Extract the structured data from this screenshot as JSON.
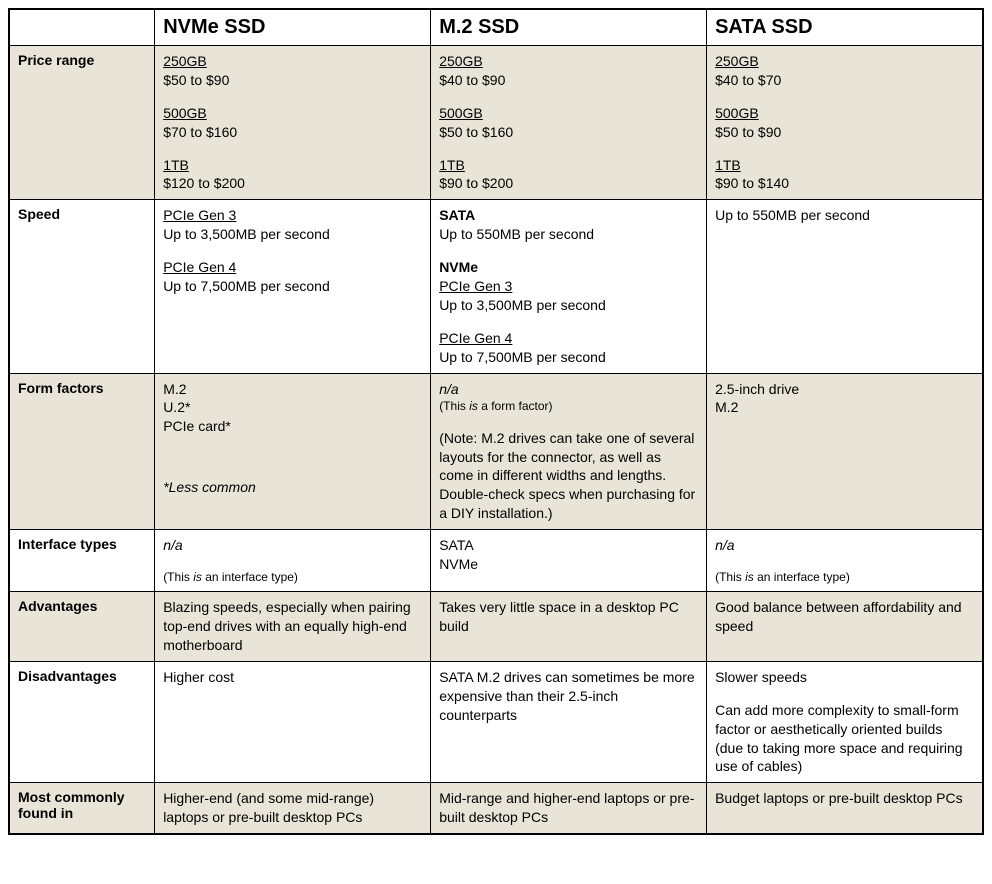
{
  "columns": [
    "NVMe SSD",
    "M.2 SSD",
    "SATA SSD"
  ],
  "rows": {
    "price": {
      "label": "Price range",
      "nvme": {
        "t1_cap": "250GB",
        "t1_price": "$50 to $90",
        "t2_cap": "500GB",
        "t2_price": "$70 to $160",
        "t3_cap": "1TB",
        "t3_price": "$120 to $200"
      },
      "m2": {
        "t1_cap": "250GB",
        "t1_price": "$40 to $90",
        "t2_cap": "500GB",
        "t2_price": "$50 to $160",
        "t3_cap": "1TB",
        "t3_price": "$90 to $200"
      },
      "sata": {
        "t1_cap": "250GB",
        "t1_price": "$40 to $70",
        "t2_cap": "500GB",
        "t2_price": "$50 to $90",
        "t3_cap": "1TB",
        "t3_price": "$90 to $140"
      }
    },
    "speed": {
      "label": "Speed",
      "nvme": {
        "h1": "PCIe Gen 3",
        "v1": "Up to 3,500MB per second",
        "h2": "PCIe Gen 4",
        "v2": "Up to 7,500MB per second"
      },
      "m2": {
        "sata_h": "SATA",
        "sata_v": "Up to 550MB per second",
        "nvme_h": "NVMe",
        "g3_h": "PCIe Gen 3",
        "g3_v": "Up to 3,500MB per second",
        "g4_h": "PCIe Gen 4",
        "g4_v": "Up to 7,500MB per second"
      },
      "sata": {
        "v": "Up to 550MB per second"
      }
    },
    "form": {
      "label": "Form factors",
      "nvme": {
        "l1": "M.2",
        "l2": "U.2*",
        "l3": "PCIe card*",
        "note": "*Less common"
      },
      "m2": {
        "na": "n/a",
        "na_note_pre": "(This ",
        "na_note_em": "is",
        "na_note_post": " a form factor)",
        "note": "(Note: M.2 drives can take one of several layouts for the connector, as well as come in different widths and lengths. Double-check specs when purchasing for a DIY installation.)"
      },
      "sata": {
        "l1": "2.5-inch drive",
        "l2": "M.2"
      }
    },
    "iface": {
      "label": "Interface types",
      "nvme": {
        "na": "n/a",
        "note_pre": "(This ",
        "note_em": "is",
        "note_post": " an interface type)"
      },
      "m2": {
        "l1": "SATA",
        "l2": "NVMe"
      },
      "sata": {
        "na": "n/a",
        "note_pre": "(This ",
        "note_em": "is",
        "note_post": " an interface type)"
      }
    },
    "adv": {
      "label": "Advantages",
      "nvme": "Blazing speeds, especially when pairing top-end drives with an equally high-end motherboard",
      "m2": "Takes very little space in a desktop PC build",
      "sata": "Good balance between affordability and speed"
    },
    "dis": {
      "label": "Disadvantages",
      "nvme": "Higher cost",
      "m2": "SATA M.2 drives can sometimes be more expensive than their 2.5-inch counterparts",
      "sata_l1": "Slower speeds",
      "sata_l2": "Can add more complexity to small-form factor or aesthetically oriented builds (due to taking more space and requiring use of cables)"
    },
    "found": {
      "label": "Most commonly found in",
      "nvme": "Higher-end (and some mid-range) laptops or pre-built desktop PCs",
      "m2": "Mid-range and higher-end laptops or pre-built desktop PCs",
      "sata": "Budget laptops or pre-built desktop PCs"
    }
  },
  "style": {
    "shaded_bg": "#e8e5d8",
    "border_color": "#000000",
    "header_fontsize_pt": 15,
    "body_fontsize_pt": 10.5,
    "font_family": "Arial"
  }
}
